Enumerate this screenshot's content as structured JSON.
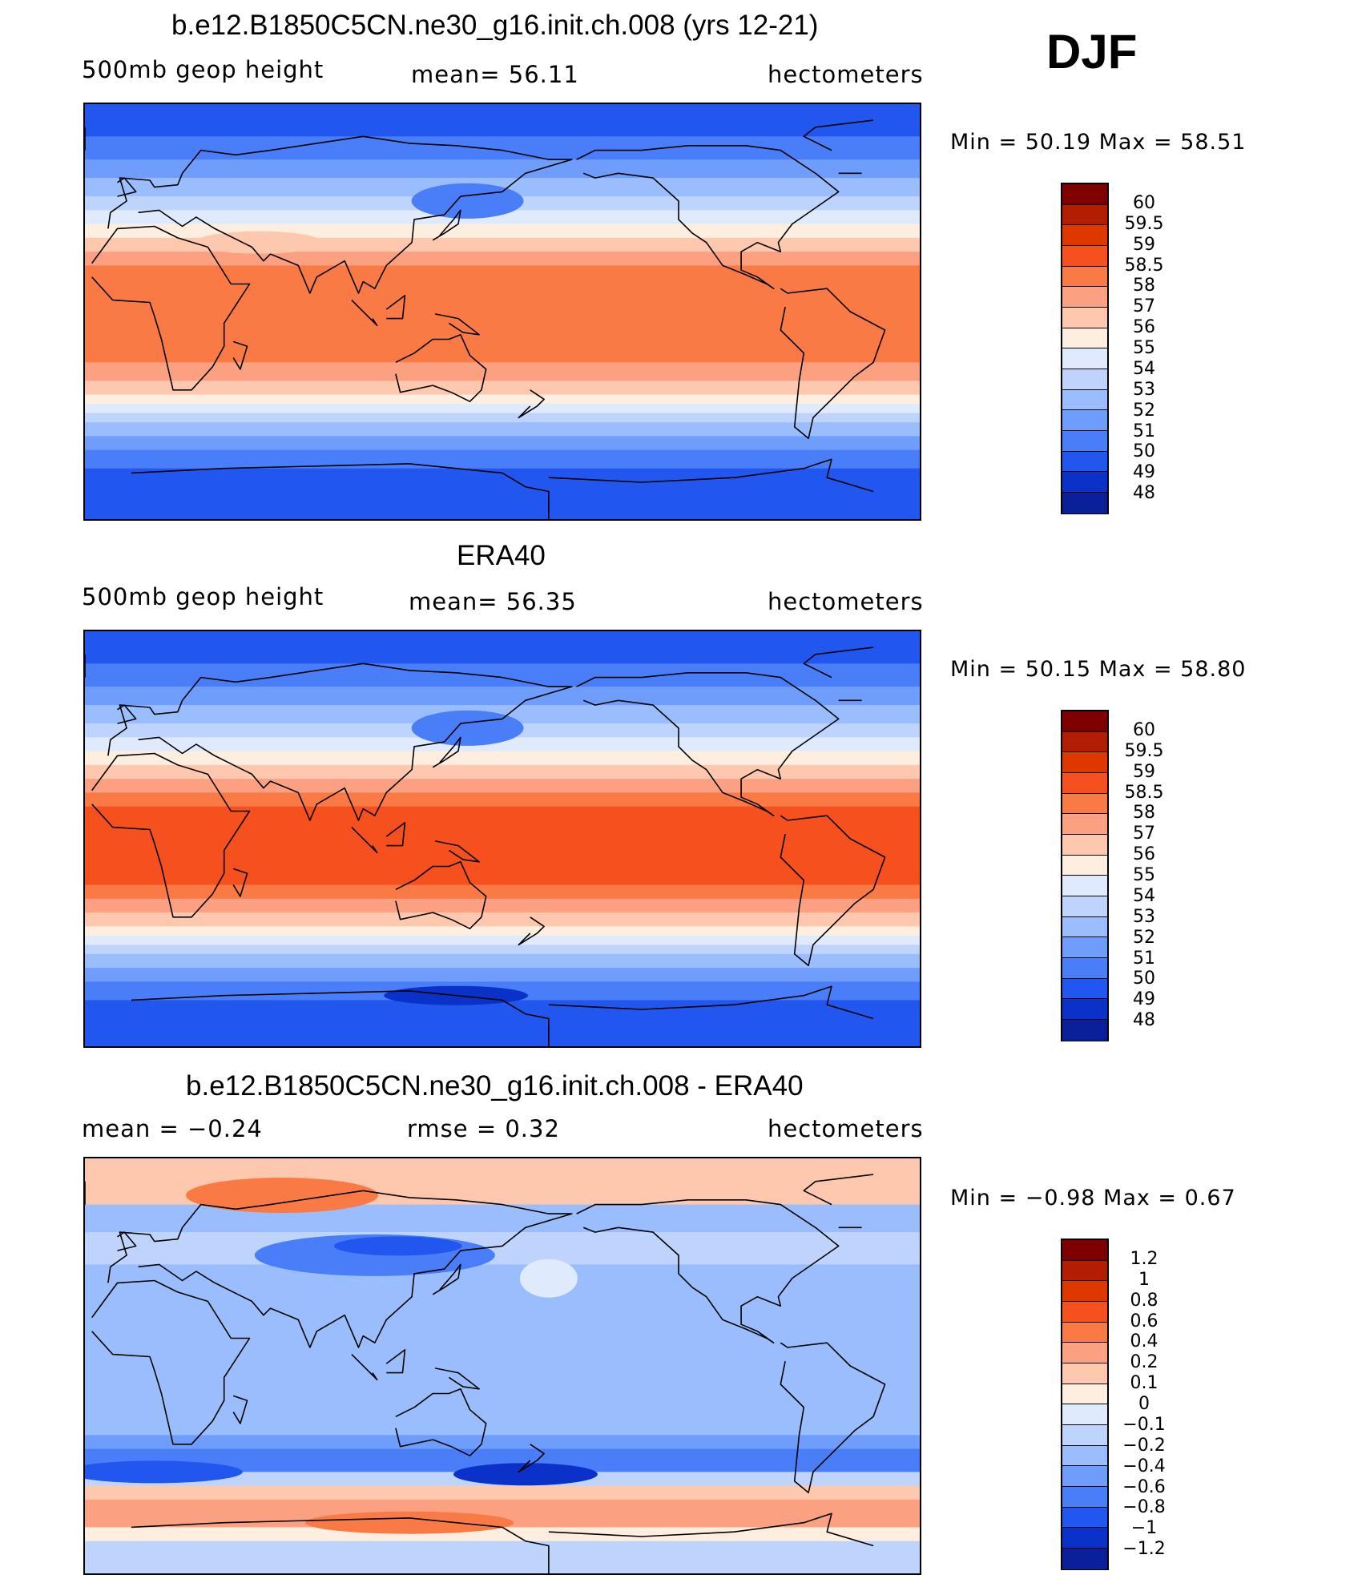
{
  "season": "DJF",
  "panels": [
    {
      "title": "b.e12.B1850C5CN.ne30_g16.init.ch.008 (yrs 12-21)",
      "left_label": "500mb  geop  height",
      "center_label": "mean=   56.11",
      "right_label": "hectometers",
      "min_max": "Min  =    50.19  Max  =    58.51",
      "colorbar": {
        "labels": [
          "60",
          "59.5",
          "59",
          "58.5",
          "58",
          "57",
          "56",
          "55",
          "54",
          "53",
          "52",
          "51",
          "50",
          "49",
          "48"
        ],
        "colors": [
          "#7f0000",
          "#b31d00",
          "#de3700",
          "#f5501e",
          "#fa7a46",
          "#fca082",
          "#fdc8ae",
          "#feeedf",
          "#dfeafc",
          "#bfd4fd",
          "#9abdfd",
          "#6f9dfc",
          "#4a7df8",
          "#2257ef",
          "#0a32c8",
          "#0a1f9a",
          "#04106a"
        ]
      },
      "field": "model"
    },
    {
      "title": "ERA40",
      "left_label": "500mb  geop  height",
      "center_label": "mean=   56.35",
      "right_label": "hectometers",
      "min_max": "Min  =    50.15  Max  =    58.80",
      "colorbar": {
        "labels": [
          "60",
          "59.5",
          "59",
          "58.5",
          "58",
          "57",
          "56",
          "55",
          "54",
          "53",
          "52",
          "51",
          "50",
          "49",
          "48"
        ],
        "colors": [
          "#7f0000",
          "#b31d00",
          "#de3700",
          "#f5501e",
          "#fa7a46",
          "#fca082",
          "#fdc8ae",
          "#feeedf",
          "#dfeafc",
          "#bfd4fd",
          "#9abdfd",
          "#6f9dfc",
          "#4a7df8",
          "#2257ef",
          "#0a32c8",
          "#0a1f9a",
          "#04106a"
        ]
      },
      "field": "obs"
    },
    {
      "title": "b.e12.B1850C5CN.ne30_g16.init.ch.008 - ERA40",
      "left_label": "mean  =    −0.24",
      "center_label": "rmse  =     0.32",
      "right_label": "hectometers",
      "min_max": "Min  =    −0.98  Max  =     0.67",
      "colorbar": {
        "labels": [
          "1.2",
          "1",
          "0.8",
          "0.6",
          "0.4",
          "0.2",
          "0.1",
          "0",
          "−0.1",
          "−0.2",
          "−0.4",
          "−0.6",
          "−0.8",
          "−1",
          "−1.2"
        ],
        "colors": [
          "#7f0000",
          "#b31d00",
          "#de3700",
          "#f5501e",
          "#fa7a46",
          "#fca082",
          "#fdc8ae",
          "#feeedf",
          "#dfeafc",
          "#bfd4fd",
          "#9abdfd",
          "#6f9dfc",
          "#4a7df8",
          "#2257ef",
          "#0a32c8",
          "#0a1f9a",
          "#04106a"
        ]
      },
      "field": "diff"
    }
  ]
}
